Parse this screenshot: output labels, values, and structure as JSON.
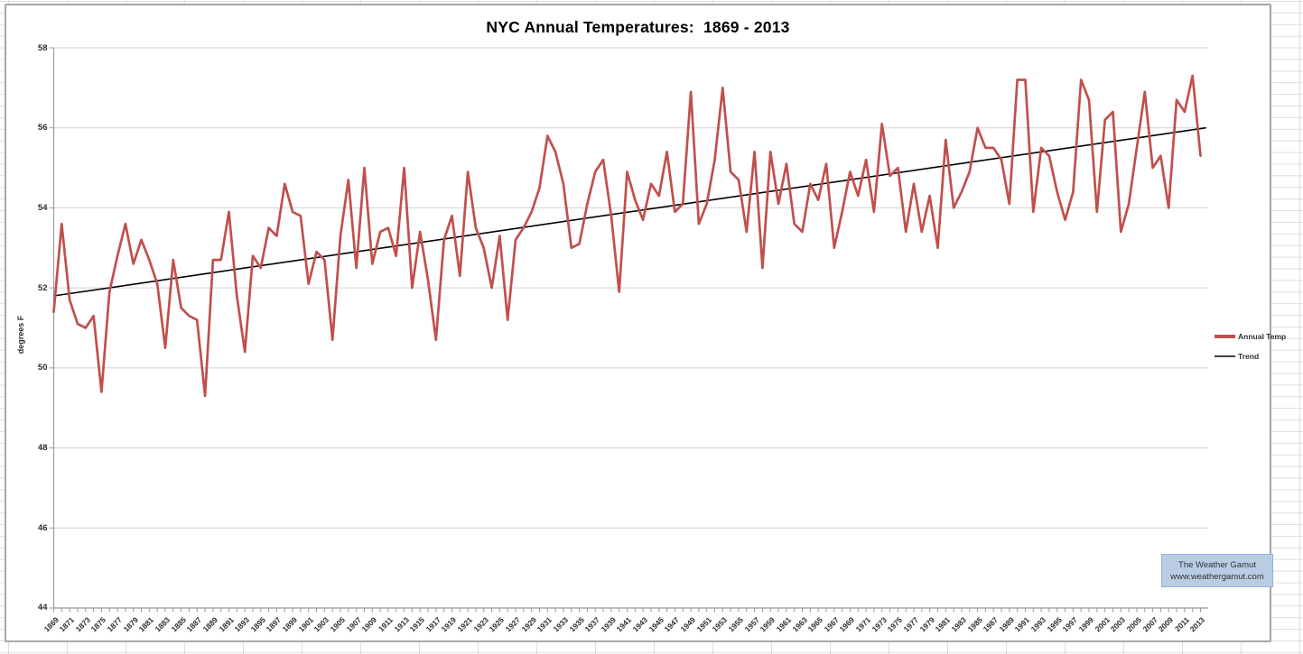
{
  "title": "NYC Annual Temperatures:  1869 - 2013",
  "legend": {
    "items": [
      {
        "label": "Annual Temp",
        "color": "#c0504d",
        "thickness": 4
      },
      {
        "label": "Trend",
        "color": "#000000",
        "thickness": 1.5
      }
    ]
  },
  "badge": {
    "line1": "The Weather Gamut",
    "line2": "www.weathergamut.com",
    "fill": "#b8cce4",
    "border": "#8eb4e3"
  },
  "y_axis": {
    "label": "degrees F",
    "ticks": [
      58,
      56,
      54,
      52,
      50,
      48,
      46,
      44
    ]
  },
  "x_axis": {
    "tick_labels": [
      "1869",
      "1871",
      "1873",
      "1875",
      "1877",
      "1879",
      "1881",
      "1883",
      "1885",
      "1887",
      "1889",
      "1891",
      "1893",
      "1895",
      "1897",
      "1899",
      "1901",
      "1903",
      "1905",
      "1907",
      "1909",
      "1911",
      "1913",
      "1915",
      "1917",
      "1919",
      "1921",
      "1923",
      "1925",
      "1927",
      "1929",
      "1931",
      "1933",
      "1935",
      "1937",
      "1939",
      "1941",
      "1943",
      "1945",
      "1947",
      "1949",
      "1951",
      "1953",
      "1955",
      "1957",
      "1959",
      "1961",
      "1963",
      "1965",
      "1967",
      "1969",
      "1971",
      "1973",
      "1975",
      "1977",
      "1979",
      "1981",
      "1983",
      "1985",
      "1987",
      "1989",
      "1991",
      "1993",
      "1995",
      "1997",
      "1999",
      "2001",
      "2003",
      "2005",
      "2007",
      "2009",
      "2011",
      "2013"
    ]
  },
  "chart_data": {
    "type": "line",
    "title": "NYC Annual Temperatures:  1869 - 2013",
    "xlabel": "",
    "ylabel": "degrees F",
    "ylim": [
      44,
      58
    ],
    "grid": true,
    "legend_position": "right",
    "x_start": 1869,
    "x_end": 2013,
    "series": [
      {
        "name": "Annual Temp",
        "color": "#c0504d",
        "values": [
          51.4,
          53.6,
          51.7,
          51.1,
          51.0,
          51.3,
          49.4,
          51.9,
          52.8,
          53.6,
          52.6,
          53.2,
          52.7,
          52.1,
          50.5,
          52.7,
          51.5,
          51.3,
          51.2,
          49.3,
          52.7,
          52.7,
          53.9,
          51.8,
          50.4,
          52.8,
          52.5,
          53.5,
          53.3,
          54.6,
          53.9,
          53.8,
          52.1,
          52.9,
          52.7,
          50.7,
          53.3,
          54.7,
          52.5,
          55.0,
          52.6,
          53.4,
          53.5,
          52.8,
          55.0,
          52.0,
          53.4,
          52.2,
          50.7,
          53.2,
          53.8,
          52.3,
          54.9,
          53.5,
          53.0,
          52.0,
          53.3,
          51.2,
          53.2,
          53.5,
          53.9,
          54.5,
          55.8,
          55.4,
          54.6,
          53.0,
          53.1,
          54.1,
          54.9,
          55.2,
          53.8,
          51.9,
          54.9,
          54.2,
          53.7,
          54.6,
          54.3,
          55.4,
          53.9,
          54.1,
          56.9,
          53.6,
          54.1,
          55.2,
          57.0,
          54.9,
          54.7,
          53.4,
          55.4,
          52.5,
          55.4,
          54.1,
          55.1,
          53.6,
          53.4,
          54.6,
          54.2,
          55.1,
          53.0,
          53.9,
          54.9,
          54.3,
          55.2,
          53.9,
          56.1,
          54.8,
          55.0,
          53.4,
          54.6,
          53.4,
          54.3,
          53.0,
          55.7,
          54.0,
          54.4,
          54.9,
          56.0,
          55.5,
          55.5,
          55.2,
          54.1,
          57.2,
          57.2,
          53.9,
          55.5,
          55.3,
          54.4,
          53.7,
          54.4,
          57.2,
          56.7,
          53.9,
          56.2,
          56.4,
          53.4,
          54.1,
          55.5,
          56.9,
          55.0,
          55.3,
          54.0,
          56.7,
          56.4,
          57.3,
          55.3
        ]
      },
      {
        "name": "Trend",
        "color": "#000000",
        "trend_start_value": 51.8,
        "trend_end_value": 56.0
      }
    ]
  }
}
